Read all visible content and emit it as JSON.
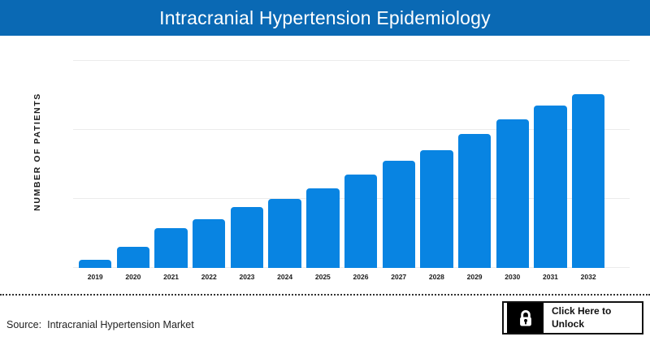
{
  "header": {
    "title": "Intracranial Hypertension Epidemiology",
    "bg_color": "#0a69b4",
    "text_color": "#ffffff"
  },
  "chart_data": {
    "type": "bar",
    "title": "Intracranial Hypertension Epidemiology",
    "ylabel": "NUMBER OF PATIENTS",
    "xlabel": "",
    "categories": [
      "2019",
      "2020",
      "2021",
      "2022",
      "2023",
      "2024",
      "2025",
      "2026",
      "2027",
      "2028",
      "2029",
      "2030",
      "2031",
      "2032"
    ],
    "values": [
      12,
      31,
      58,
      71,
      88,
      100,
      115,
      135,
      155,
      171,
      194,
      215,
      235,
      252
    ],
    "units": "relative (y-axis tick values not displayed in image)",
    "value_labels_visible": false,
    "ylim": [
      0,
      300
    ],
    "gridline_values": [
      0,
      100,
      200,
      300
    ],
    "grid": true,
    "legend": false,
    "bar_color": "#0884e2",
    "gridline_color": "#ececec"
  },
  "footer": {
    "source_label": "Source:",
    "source_text": "Intracranial Hypertension Market",
    "unlock_button": {
      "line1": "Click Here to",
      "line2": "Unlock",
      "icon": "lock-icon"
    }
  },
  "colors": {
    "header_bg": "#0a69b4",
    "bar": "#0884e2",
    "gridline": "#ececec",
    "divider": "#333333",
    "text_dark": "#1a1a1a"
  }
}
